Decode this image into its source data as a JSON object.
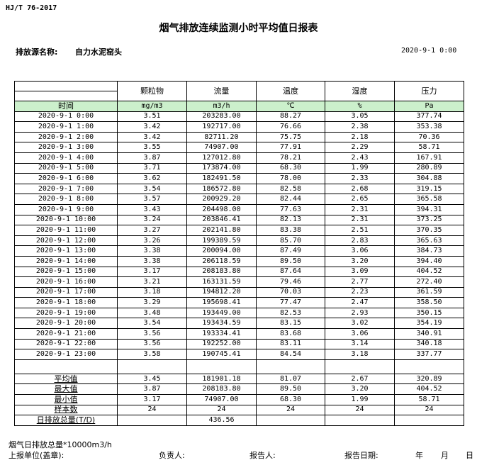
{
  "standard": "HJ/T  76-2017",
  "title": "烟气排放连续监测小时平均值日报表",
  "source_label": "排放源名称:",
  "source_value": "自力水泥窑头",
  "report_datetime": "2020-9-1 0:00",
  "columns": [
    "颗粒物",
    "流量",
    "温度",
    "湿度",
    "压力"
  ],
  "time_header": "时间",
  "units": [
    "mg/m3",
    "m3/h",
    "℃",
    "%",
    "Pa"
  ],
  "rows": [
    [
      "2020-9-1 0:00",
      "3.51",
      "203283.00",
      "88.27",
      "3.05",
      "377.74"
    ],
    [
      "2020-9-1 1:00",
      "3.42",
      "192717.00",
      "76.66",
      "2.38",
      "353.38"
    ],
    [
      "2020-9-1 2:00",
      "3.42",
      "82711.20",
      "75.75",
      "2.18",
      "70.36"
    ],
    [
      "2020-9-1 3:00",
      "3.55",
      "74907.00",
      "77.91",
      "2.29",
      "58.71"
    ],
    [
      "2020-9-1 4:00",
      "3.87",
      "127012.80",
      "78.21",
      "2.43",
      "167.91"
    ],
    [
      "2020-9-1 5:00",
      "3.71",
      "173874.00",
      "68.30",
      "1.99",
      "280.89"
    ],
    [
      "2020-9-1 6:00",
      "3.62",
      "182491.50",
      "78.00",
      "2.33",
      "304.88"
    ],
    [
      "2020-9-1 7:00",
      "3.54",
      "186572.80",
      "82.58",
      "2.68",
      "319.15"
    ],
    [
      "2020-9-1 8:00",
      "3.57",
      "200929.20",
      "82.44",
      "2.65",
      "365.58"
    ],
    [
      "2020-9-1 9:00",
      "3.43",
      "204498.00",
      "77.63",
      "2.31",
      "394.31"
    ],
    [
      "2020-9-1 10:00",
      "3.24",
      "203846.41",
      "82.13",
      "2.31",
      "373.25"
    ],
    [
      "2020-9-1 11:00",
      "3.27",
      "202141.80",
      "83.38",
      "2.51",
      "370.35"
    ],
    [
      "2020-9-1 12:00",
      "3.26",
      "199389.59",
      "85.70",
      "2.83",
      "365.63"
    ],
    [
      "2020-9-1 13:00",
      "3.38",
      "200094.00",
      "87.49",
      "3.06",
      "384.73"
    ],
    [
      "2020-9-1 14:00",
      "3.38",
      "206118.59",
      "89.50",
      "3.20",
      "394.40"
    ],
    [
      "2020-9-1 15:00",
      "3.17",
      "208183.80",
      "87.64",
      "3.09",
      "404.52"
    ],
    [
      "2020-9-1 16:00",
      "3.21",
      "163131.59",
      "79.46",
      "2.77",
      "272.40"
    ],
    [
      "2020-9-1 17:00",
      "3.18",
      "194812.20",
      "70.03",
      "2.23",
      "361.59"
    ],
    [
      "2020-9-1 18:00",
      "3.29",
      "195698.41",
      "77.47",
      "2.47",
      "358.50"
    ],
    [
      "2020-9-1 19:00",
      "3.48",
      "193449.00",
      "82.53",
      "2.93",
      "350.15"
    ],
    [
      "2020-9-1 20:00",
      "3.54",
      "193434.59",
      "83.15",
      "3.02",
      "354.19"
    ],
    [
      "2020-9-1 21:00",
      "3.56",
      "193334.41",
      "83.68",
      "3.06",
      "340.91"
    ],
    [
      "2020-9-1 22:00",
      "3.56",
      "192252.00",
      "83.11",
      "3.14",
      "340.18"
    ],
    [
      "2020-9-1 23:00",
      "3.58",
      "190745.41",
      "84.54",
      "3.18",
      "337.77"
    ]
  ],
  "stats": [
    [
      "平均值",
      "3.45",
      "181901.18",
      "81.07",
      "2.67",
      "320.89"
    ],
    [
      "最大值",
      "3.87",
      "208183.80",
      "89.50",
      "3.20",
      "404.52"
    ],
    [
      "最小值",
      "3.17",
      "74907.00",
      "68.30",
      "1.99",
      "58.71"
    ],
    [
      "样本数",
      "24",
      "24",
      "24",
      "24",
      "24"
    ],
    [
      "日排放总量(T/D)",
      "",
      "436.56",
      "",
      "",
      ""
    ]
  ],
  "footnote": "烟气日排放总量*10000m3/h",
  "signature": {
    "unit": "上报单位(盖章):",
    "responsible": "负责人:",
    "reporter": "报告人:",
    "report_date": "报告日期:",
    "year": "年",
    "month": "月",
    "day": "日"
  }
}
